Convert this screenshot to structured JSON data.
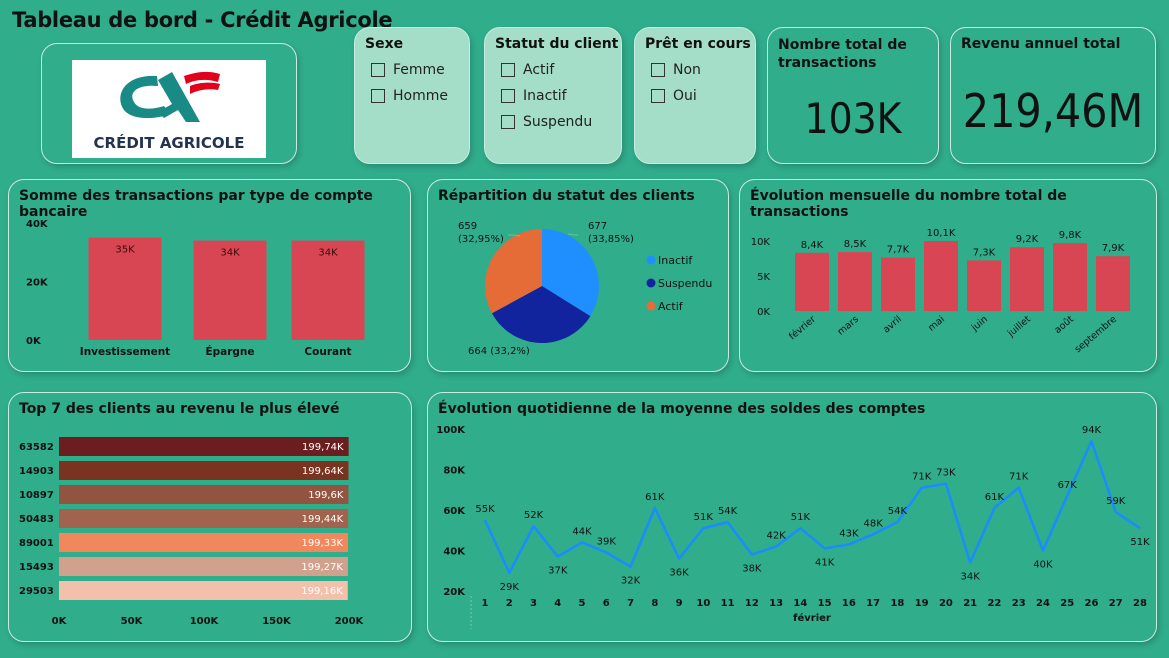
{
  "header": {
    "title": "Tableau de bord - Crédit Agricole"
  },
  "logo": {
    "brand_text": "CRÉDIT AGRICOLE",
    "colors": {
      "teal": "#1a8a86",
      "red": "#e2001a",
      "dark": "#22334e"
    }
  },
  "slicers": [
    {
      "title": "Sexe",
      "options": [
        "Femme",
        "Homme"
      ]
    },
    {
      "title": "Statut du client",
      "options": [
        "Actif",
        "Inactif",
        "Suspendu"
      ]
    },
    {
      "title": "Prêt en cours",
      "options": [
        "Non",
        "Oui"
      ]
    }
  ],
  "kpis": [
    {
      "title": "Nombre total de transactions",
      "value": "103K"
    },
    {
      "title": "Revenu annuel total",
      "value": "219,46M"
    }
  ],
  "colors": {
    "background": "#30ad8b",
    "bar_red": "#d84653",
    "pie_inactif": "#1f8fff",
    "pie_suspendu": "#12239e",
    "pie_actif": "#e66c37",
    "line_blue": "#1a8cff"
  },
  "chart_data": [
    {
      "type": "bar",
      "title": "Somme des transactions par type de compte bancaire",
      "categories": [
        "Investissement",
        "Épargne",
        "Courant"
      ],
      "values": [
        35,
        34,
        34
      ],
      "data_labels": [
        "35K",
        "34K",
        "34K"
      ],
      "y_ticks": [
        "0K",
        "20K",
        "40K"
      ],
      "ylim": [
        0,
        40
      ]
    },
    {
      "type": "pie",
      "title": "Répartition du statut des clients",
      "slices": [
        {
          "name": "Inactif",
          "value": 677,
          "label": "677 (33,85%)"
        },
        {
          "name": "Suspendu",
          "value": 664,
          "label": "664 (33,2%)"
        },
        {
          "name": "Actif",
          "value": 659,
          "label": "659 (32,95%)"
        }
      ],
      "legend": [
        "Inactif",
        "Suspendu",
        "Actif"
      ]
    },
    {
      "type": "bar",
      "title": "Évolution mensuelle du nombre total de transactions",
      "categories": [
        "février",
        "mars",
        "avril",
        "mai",
        "juin",
        "juillet",
        "août",
        "septembre"
      ],
      "values": [
        8.4,
        8.5,
        7.7,
        10.1,
        7.3,
        9.2,
        9.8,
        7.9
      ],
      "data_labels": [
        "8,4K",
        "8,5K",
        "7,7K",
        "10,1K",
        "7,3K",
        "9,2K",
        "9,8K",
        "7,9K"
      ],
      "y_ticks": [
        "0K",
        "5K",
        "10K"
      ],
      "ylim": [
        0,
        10
      ]
    },
    {
      "type": "bar",
      "title": "Top 7 des clients au revenu le plus élevé",
      "categories": [
        "63582",
        "14903",
        "10897",
        "50483",
        "89001",
        "15493",
        "29503"
      ],
      "values": [
        199.74,
        199.64,
        199.6,
        199.44,
        199.33,
        199.27,
        199.16
      ],
      "data_labels": [
        "199,74K",
        "199,64K",
        "199,6K",
        "199,44K",
        "199,33K",
        "199,27K",
        "199,16K"
      ],
      "bar_colors": [
        "#6b1d1f",
        "#7a3320",
        "#935341",
        "#a1634e",
        "#f0875d",
        "#d1a18d",
        "#f3c0ab"
      ],
      "x_ticks": [
        "0K",
        "50K",
        "100K",
        "150K",
        "200K"
      ],
      "xlim": [
        0,
        200
      ]
    },
    {
      "type": "line",
      "title": "Évolution quotidienne de la moyenne des soldes des comptes",
      "x": [
        1,
        2,
        3,
        4,
        5,
        6,
        7,
        8,
        9,
        10,
        11,
        12,
        13,
        14,
        15,
        16,
        17,
        18,
        19,
        20,
        21,
        22,
        23,
        24,
        25,
        26,
        27,
        28
      ],
      "y": [
        55,
        29,
        52,
        37,
        44,
        39,
        32,
        61,
        36,
        51,
        54,
        38,
        42,
        51,
        41,
        43,
        48,
        54,
        71,
        73,
        34,
        61,
        71,
        40,
        67,
        94,
        59,
        51
      ],
      "xlabel": "février",
      "y_ticks": [
        "20K",
        "40K",
        "60K",
        "80K",
        "100K"
      ],
      "ylim": [
        20,
        100
      ]
    }
  ]
}
